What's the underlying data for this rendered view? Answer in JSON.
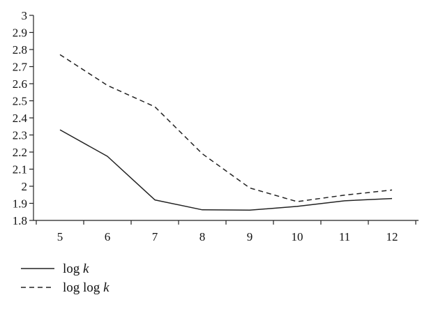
{
  "chart_data": {
    "type": "line",
    "title": "",
    "xlabel": "",
    "ylabel": "",
    "x": [
      5,
      6,
      7,
      8,
      9,
      10,
      11,
      12
    ],
    "x_ticks": [
      "5",
      "6",
      "7",
      "8",
      "9",
      "10",
      "11",
      "12"
    ],
    "ylim": [
      1.8,
      3.0
    ],
    "y_ticks": [
      "1.8",
      "1.9",
      "2",
      "2.1",
      "2.2",
      "2.3",
      "2.4",
      "2.5",
      "2.6",
      "2.7",
      "2.8",
      "2.9",
      "3"
    ],
    "grid": false,
    "legend_position": "bottom-left",
    "series": [
      {
        "name": "log k",
        "name_parts": {
          "fn": "log",
          "var": "k"
        },
        "style": "solid",
        "color": "#222222",
        "values": [
          2.33,
          2.175,
          1.92,
          1.862,
          1.86,
          1.882,
          1.915,
          1.928
        ]
      },
      {
        "name": "log log k",
        "name_parts": {
          "fn": "log log",
          "var": "k"
        },
        "style": "dashed",
        "color": "#222222",
        "values": [
          2.77,
          2.59,
          2.465,
          2.19,
          1.99,
          1.91,
          1.948,
          1.978
        ]
      }
    ]
  }
}
